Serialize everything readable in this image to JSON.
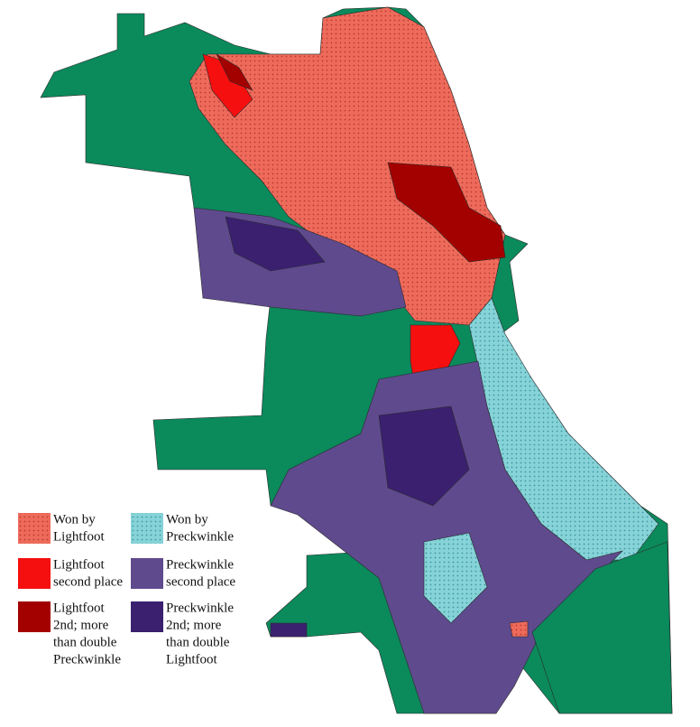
{
  "legend": {
    "items": [
      {
        "label_lines": [
          "Won by",
          "Lightfoot"
        ],
        "color": "#ee6b5c",
        "pattern": "dots",
        "dot_color": "#b83a2e"
      },
      {
        "label_lines": [
          "Won by",
          "Preckwinkle"
        ],
        "color": "#86d3d8",
        "pattern": "dots",
        "dot_color": "#3d9aa3"
      },
      {
        "label_lines": [
          "Lightfoot",
          "second place"
        ],
        "color": "#f50f0f",
        "pattern": "solid"
      },
      {
        "label_lines": [
          "Preckwinkle",
          "second place"
        ],
        "color": "#5f4a8e",
        "pattern": "solid"
      },
      {
        "label_lines": [
          "Lightfoot",
          "2nd; more",
          "than double",
          "Preckwinkle"
        ],
        "color": "#a30000",
        "pattern": "solid"
      },
      {
        "label_lines": [
          "Preckwinkle",
          "2nd; more",
          "than double",
          "Lightfoot"
        ],
        "color": "#3b2070",
        "pattern": "solid"
      }
    ]
  }
}
